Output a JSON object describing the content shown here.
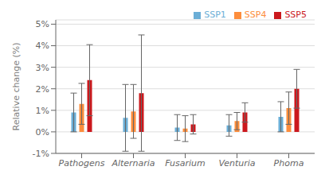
{
  "chart_data": {
    "type": "bar",
    "categories": [
      "Pathogens",
      "Alternaria",
      "Fusarium",
      "Venturia",
      "Phoma"
    ],
    "series": [
      {
        "name": "SSP1",
        "color": "#6BAED6",
        "values": [
          0.9,
          0.65,
          0.2,
          0.3,
          0.7
        ],
        "errors": [
          0.9,
          1.55,
          0.6,
          0.5,
          0.7
        ]
      },
      {
        "name": "SSP4",
        "color": "#FD8D3C",
        "values": [
          1.3,
          0.95,
          0.15,
          0.5,
          1.1
        ],
        "errors": [
          0.95,
          1.25,
          0.6,
          0.4,
          0.75
        ]
      },
      {
        "name": "SSP5",
        "color": "#CB181D",
        "values": [
          2.4,
          1.8,
          0.35,
          0.9,
          2.0
        ],
        "errors": [
          1.65,
          2.7,
          0.45,
          0.45,
          0.9
        ]
      }
    ],
    "ylabel": "Relative change (%)",
    "ylim": [
      -1,
      5.2
    ],
    "yticks": [
      {
        "value": -1,
        "label": "-1%"
      },
      {
        "value": 0,
        "label": "0%"
      },
      {
        "value": 1,
        "label": "1%"
      },
      {
        "value": 2,
        "label": "2%"
      },
      {
        "value": 3,
        "label": "3%"
      },
      {
        "value": 4,
        "label": "4%"
      },
      {
        "value": 5,
        "label": "5%"
      }
    ],
    "grid": true,
    "legend": "upper right"
  }
}
